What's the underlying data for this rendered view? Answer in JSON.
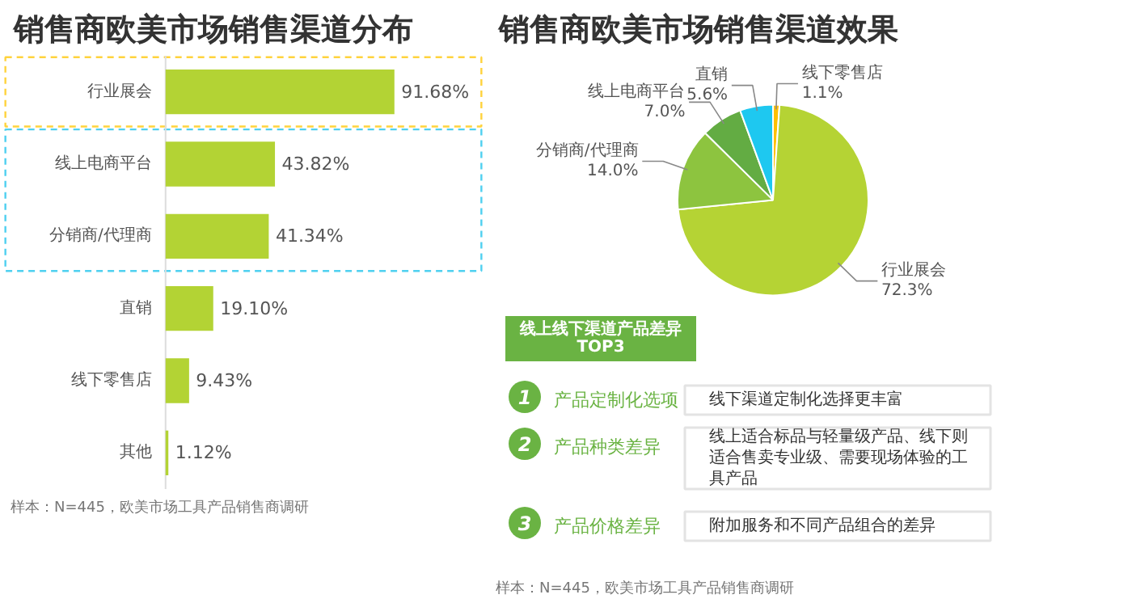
{
  "chart_data": [
    {
      "type": "bar",
      "orientation": "horizontal",
      "title": "销售商欧美市场销售渠道分布",
      "categories": [
        "行业展会",
        "线上电商平台",
        "分销商/代理商",
        "直销",
        "线下零售店",
        "其他"
      ],
      "values": [
        91.68,
        43.82,
        41.34,
        19.1,
        9.43,
        1.12
      ],
      "value_labels": [
        "91.68%",
        "43.82%",
        "41.34%",
        "19.10%",
        "9.43%",
        "1.12%"
      ],
      "color": "#b3d334",
      "annotations": [
        "样本：N=445，欧美市场工具产品销售商调研"
      ]
    },
    {
      "type": "pie",
      "title": "销售商欧美市场销售渠道效果",
      "categories": [
        "线下零售店",
        "行业展会",
        "分销商/代理商",
        "线上电商平台",
        "直销"
      ],
      "values": [
        1.1,
        72.3,
        14.0,
        7.0,
        5.6
      ],
      "value_labels": [
        "1.1%",
        "72.3%",
        "14.0%",
        "7.0%",
        "5.6%"
      ],
      "colors": [
        "#ffc000",
        "#b5d334",
        "#8dc43f",
        "#63ac43",
        "#1ec8f0"
      ]
    },
    {
      "type": "other",
      "title": "线上线下渠道产品差异\nTOP3",
      "categories": [
        "产品定制化选项",
        "产品种类差异",
        "产品价格差异"
      ],
      "values": [
        1,
        2,
        3
      ],
      "data_labels": true,
      "color": "#6ab343",
      "annotations": [
        "线下渠道定制化选择更丰富",
        "线上适合标品与轻量级产品、线下则适合售卖专业级、需要现场体验的工具产品",
        "附加服务和不同产品组合的差异",
        "样本：N=445，欧美市场工具产品销售商调研"
      ]
    }
  ]
}
